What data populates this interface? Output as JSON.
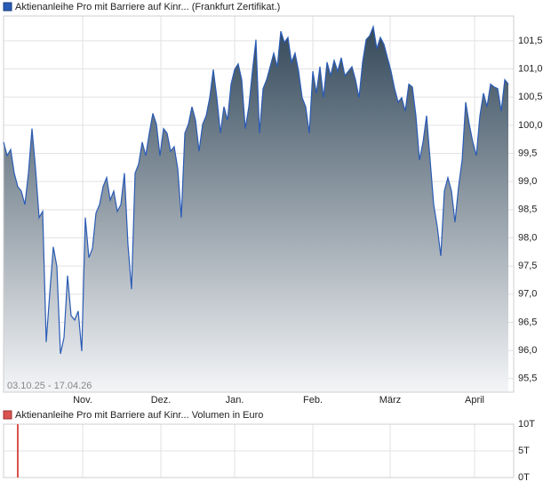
{
  "chart_data": [
    {
      "type": "area",
      "legend": "Aktienanleihe Pro mit Barriere auf Kinr... (Frankfurt Zertifikat.)",
      "date_range": "03.10.25 - 17.04.26",
      "color": "#2a5bb5",
      "grid": true,
      "values": [
        99.7,
        99.46,
        99.57,
        99.15,
        98.91,
        98.83,
        98.59,
        99.15,
        99.94,
        99.23,
        98.36,
        98.47,
        96.15,
        97.02,
        97.84,
        97.49,
        95.94,
        96.23,
        97.33,
        96.62,
        96.54,
        96.7,
        95.99,
        98.36,
        97.65,
        97.81,
        98.44,
        98.59,
        98.91,
        99.07,
        98.67,
        98.83,
        98.47,
        98.59,
        99.15,
        97.88,
        97.09,
        99.15,
        99.31,
        99.7,
        99.46,
        99.86,
        100.21,
        100.02,
        99.46,
        99.94,
        99.86,
        99.54,
        99.62,
        99.23,
        98.36,
        99.86,
        100.02,
        100.33,
        100.09,
        99.54,
        100.02,
        100.17,
        100.49,
        100.99,
        100.49,
        99.86,
        100.33,
        100.09,
        100.73,
        100.99,
        101.09,
        100.81,
        99.94,
        100.33,
        100.96,
        101.52,
        99.86,
        100.65,
        100.81,
        101.04,
        101.28,
        101.04,
        101.67,
        101.47,
        101.56,
        101.12,
        101.28,
        100.96,
        100.49,
        100.33,
        99.86,
        100.96,
        100.57,
        101.04,
        100.49,
        101.12,
        100.88,
        101.15,
        100.96,
        101.2,
        100.88,
        100.96,
        101.04,
        100.81,
        100.49,
        101.12,
        101.52,
        101.59,
        101.75,
        101.36,
        101.56,
        101.44,
        101.2,
        100.96,
        100.65,
        100.41,
        100.49,
        100.25,
        100.73,
        100.68,
        100.17,
        99.38,
        99.7,
        100.17,
        99.38,
        98.59,
        98.2,
        97.68,
        98.83,
        99.07,
        98.83,
        98.28,
        98.91,
        99.38,
        100.41,
        100.02,
        99.7,
        99.46,
        100.17,
        100.57,
        100.33,
        100.73,
        100.68,
        100.65,
        100.25,
        100.81,
        100.73
      ],
      "xlim": [
        0,
        143.5
      ],
      "xticks": [
        {
          "value": 22.25,
          "label": "Nov."
        },
        {
          "value": 44.25,
          "label": "Dez."
        },
        {
          "value": 65,
          "label": "Jan."
        },
        {
          "value": 87,
          "label": "Feb."
        },
        {
          "value": 108.75,
          "label": "März"
        },
        {
          "value": 132.5,
          "label": "April"
        }
      ],
      "ylim": [
        95.26,
        101.94
      ],
      "yticks": [
        {
          "value": 95.5,
          "label": "95,5"
        },
        {
          "value": 96,
          "label": "96,0"
        },
        {
          "value": 96.5,
          "label": "96,5"
        },
        {
          "value": 97,
          "label": "97,0"
        },
        {
          "value": 97.5,
          "label": "97,5"
        },
        {
          "value": 98,
          "label": "98,0"
        },
        {
          "value": 98.5,
          "label": "98,5"
        },
        {
          "value": 99,
          "label": "99,0"
        },
        {
          "value": 99.5,
          "label": "99,5"
        },
        {
          "value": 100,
          "label": "100,0"
        },
        {
          "value": 100.5,
          "label": "100,5"
        },
        {
          "value": 101,
          "label": "101,0"
        },
        {
          "value": 101.5,
          "label": "101,5"
        }
      ]
    },
    {
      "type": "bar",
      "legend": "Aktienanleihe Pro mit Barriere auf Kinr... Volumen in Euro",
      "color": "#d9534f",
      "grid": true,
      "x": [
        4
      ],
      "values": [
        10000
      ],
      "xlim": [
        0,
        143.5
      ],
      "ylim": [
        0,
        10000
      ],
      "yticks": [
        {
          "value": 0,
          "label": "0T"
        },
        {
          "value": 5000,
          "label": "5T"
        },
        {
          "value": 10000,
          "label": "10T"
        }
      ]
    }
  ]
}
